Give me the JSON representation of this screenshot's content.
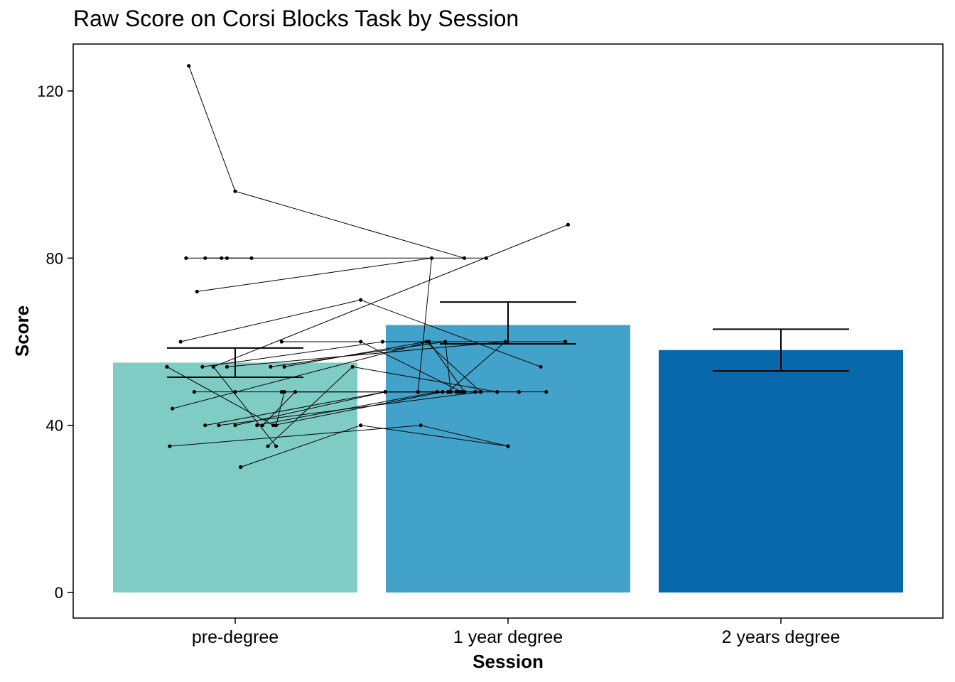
{
  "chart_data": {
    "type": "bar",
    "title": "Raw Score on Corsi Blocks Task by Session",
    "xlabel": "Session",
    "ylabel": "Score",
    "categories": [
      "pre-degree",
      "1 year degree",
      "2 years degree"
    ],
    "values": [
      55,
      64,
      58
    ],
    "error_bars": [
      {
        "low": 51.5,
        "high": 58.5
      },
      {
        "low": 59.5,
        "high": 69.5
      },
      {
        "low": 53,
        "high": 63
      }
    ],
    "colors": [
      "#7ECCC4",
      "#43A2CA",
      "#0868AC"
    ],
    "ylim": [
      -6,
      130
    ],
    "yticks": [
      0,
      40,
      80,
      120
    ],
    "grid": false,
    "legend": "none",
    "subjects": [
      {
        "x": [
          -0.17,
          0.0,
          0.84
        ],
        "y": [
          126,
          96,
          80
        ]
      },
      {
        "x": [
          -0.23,
          0.71,
          0.84
        ],
        "y": [
          44,
          60,
          48
        ]
      },
      {
        "x": [
          -0.11,
          -0.05,
          0.06
        ],
        "y": [
          80,
          80,
          80
        ]
      },
      {
        "x": [
          -0.18,
          -0.03,
          0.92
        ],
        "y": [
          80,
          80,
          80
        ]
      },
      {
        "x": [
          -0.14,
          0.72,
          0.67
        ],
        "y": [
          72,
          80,
          48
        ]
      },
      {
        "x": [
          -0.2,
          0.46,
          1.12
        ],
        "y": [
          60,
          70,
          54
        ]
      },
      {
        "x": [
          0.17,
          0.46,
          0.83
        ],
        "y": [
          60,
          60,
          48
        ]
      },
      {
        "x": [
          -0.25,
          0.14,
          0.76
        ],
        "y": [
          54,
          40,
          48
        ]
      },
      {
        "x": [
          -0.12,
          0.54,
          1.21
        ],
        "y": [
          54,
          60,
          60
        ]
      },
      {
        "x": [
          -0.03,
          0.99,
          0.78
        ],
        "y": [
          54,
          60,
          48
        ]
      },
      {
        "x": [
          0.13,
          0.77,
          0.79
        ],
        "y": [
          54,
          60,
          48
        ]
      },
      {
        "x": [
          0.18,
          0.7,
          0.9
        ],
        "y": [
          54,
          60,
          48
        ]
      },
      {
        "x": [
          -0.15,
          0.0,
          0.82
        ],
        "y": [
          48,
          48,
          48
        ]
      },
      {
        "x": [
          0.17,
          0.81,
          0.88
        ],
        "y": [
          48,
          48,
          48
        ]
      },
      {
        "x": [
          -0.11,
          0.55,
          0.79
        ],
        "y": [
          40,
          48,
          48
        ]
      },
      {
        "x": [
          0.08,
          0.74,
          0.84
        ],
        "y": [
          40,
          48,
          48
        ]
      },
      {
        "x": [
          -0.06,
          0.9,
          0.79
        ],
        "y": [
          40,
          48,
          48
        ]
      },
      {
        "x": [
          0.1,
          0.22,
          0.88
        ],
        "y": [
          40,
          48,
          48
        ]
      },
      {
        "x": [
          0.0,
          0.55,
          1.04
        ],
        "y": [
          40,
          48,
          48
        ]
      },
      {
        "x": [
          0.15,
          0.18,
          1.14
        ],
        "y": [
          40,
          48,
          48
        ]
      },
      {
        "x": [
          -0.24,
          0.68,
          1.0
        ],
        "y": [
          35,
          40,
          35
        ]
      },
      {
        "x": [
          0.15,
          -0.08,
          1.22
        ],
        "y": [
          35,
          54,
          88
        ]
      },
      {
        "x": [
          0.12,
          0.43,
          0.96
        ],
        "y": [
          35,
          54,
          48
        ]
      },
      {
        "x": [
          0.02,
          0.46,
          1.0
        ],
        "y": [
          30,
          40,
          35
        ]
      }
    ]
  }
}
